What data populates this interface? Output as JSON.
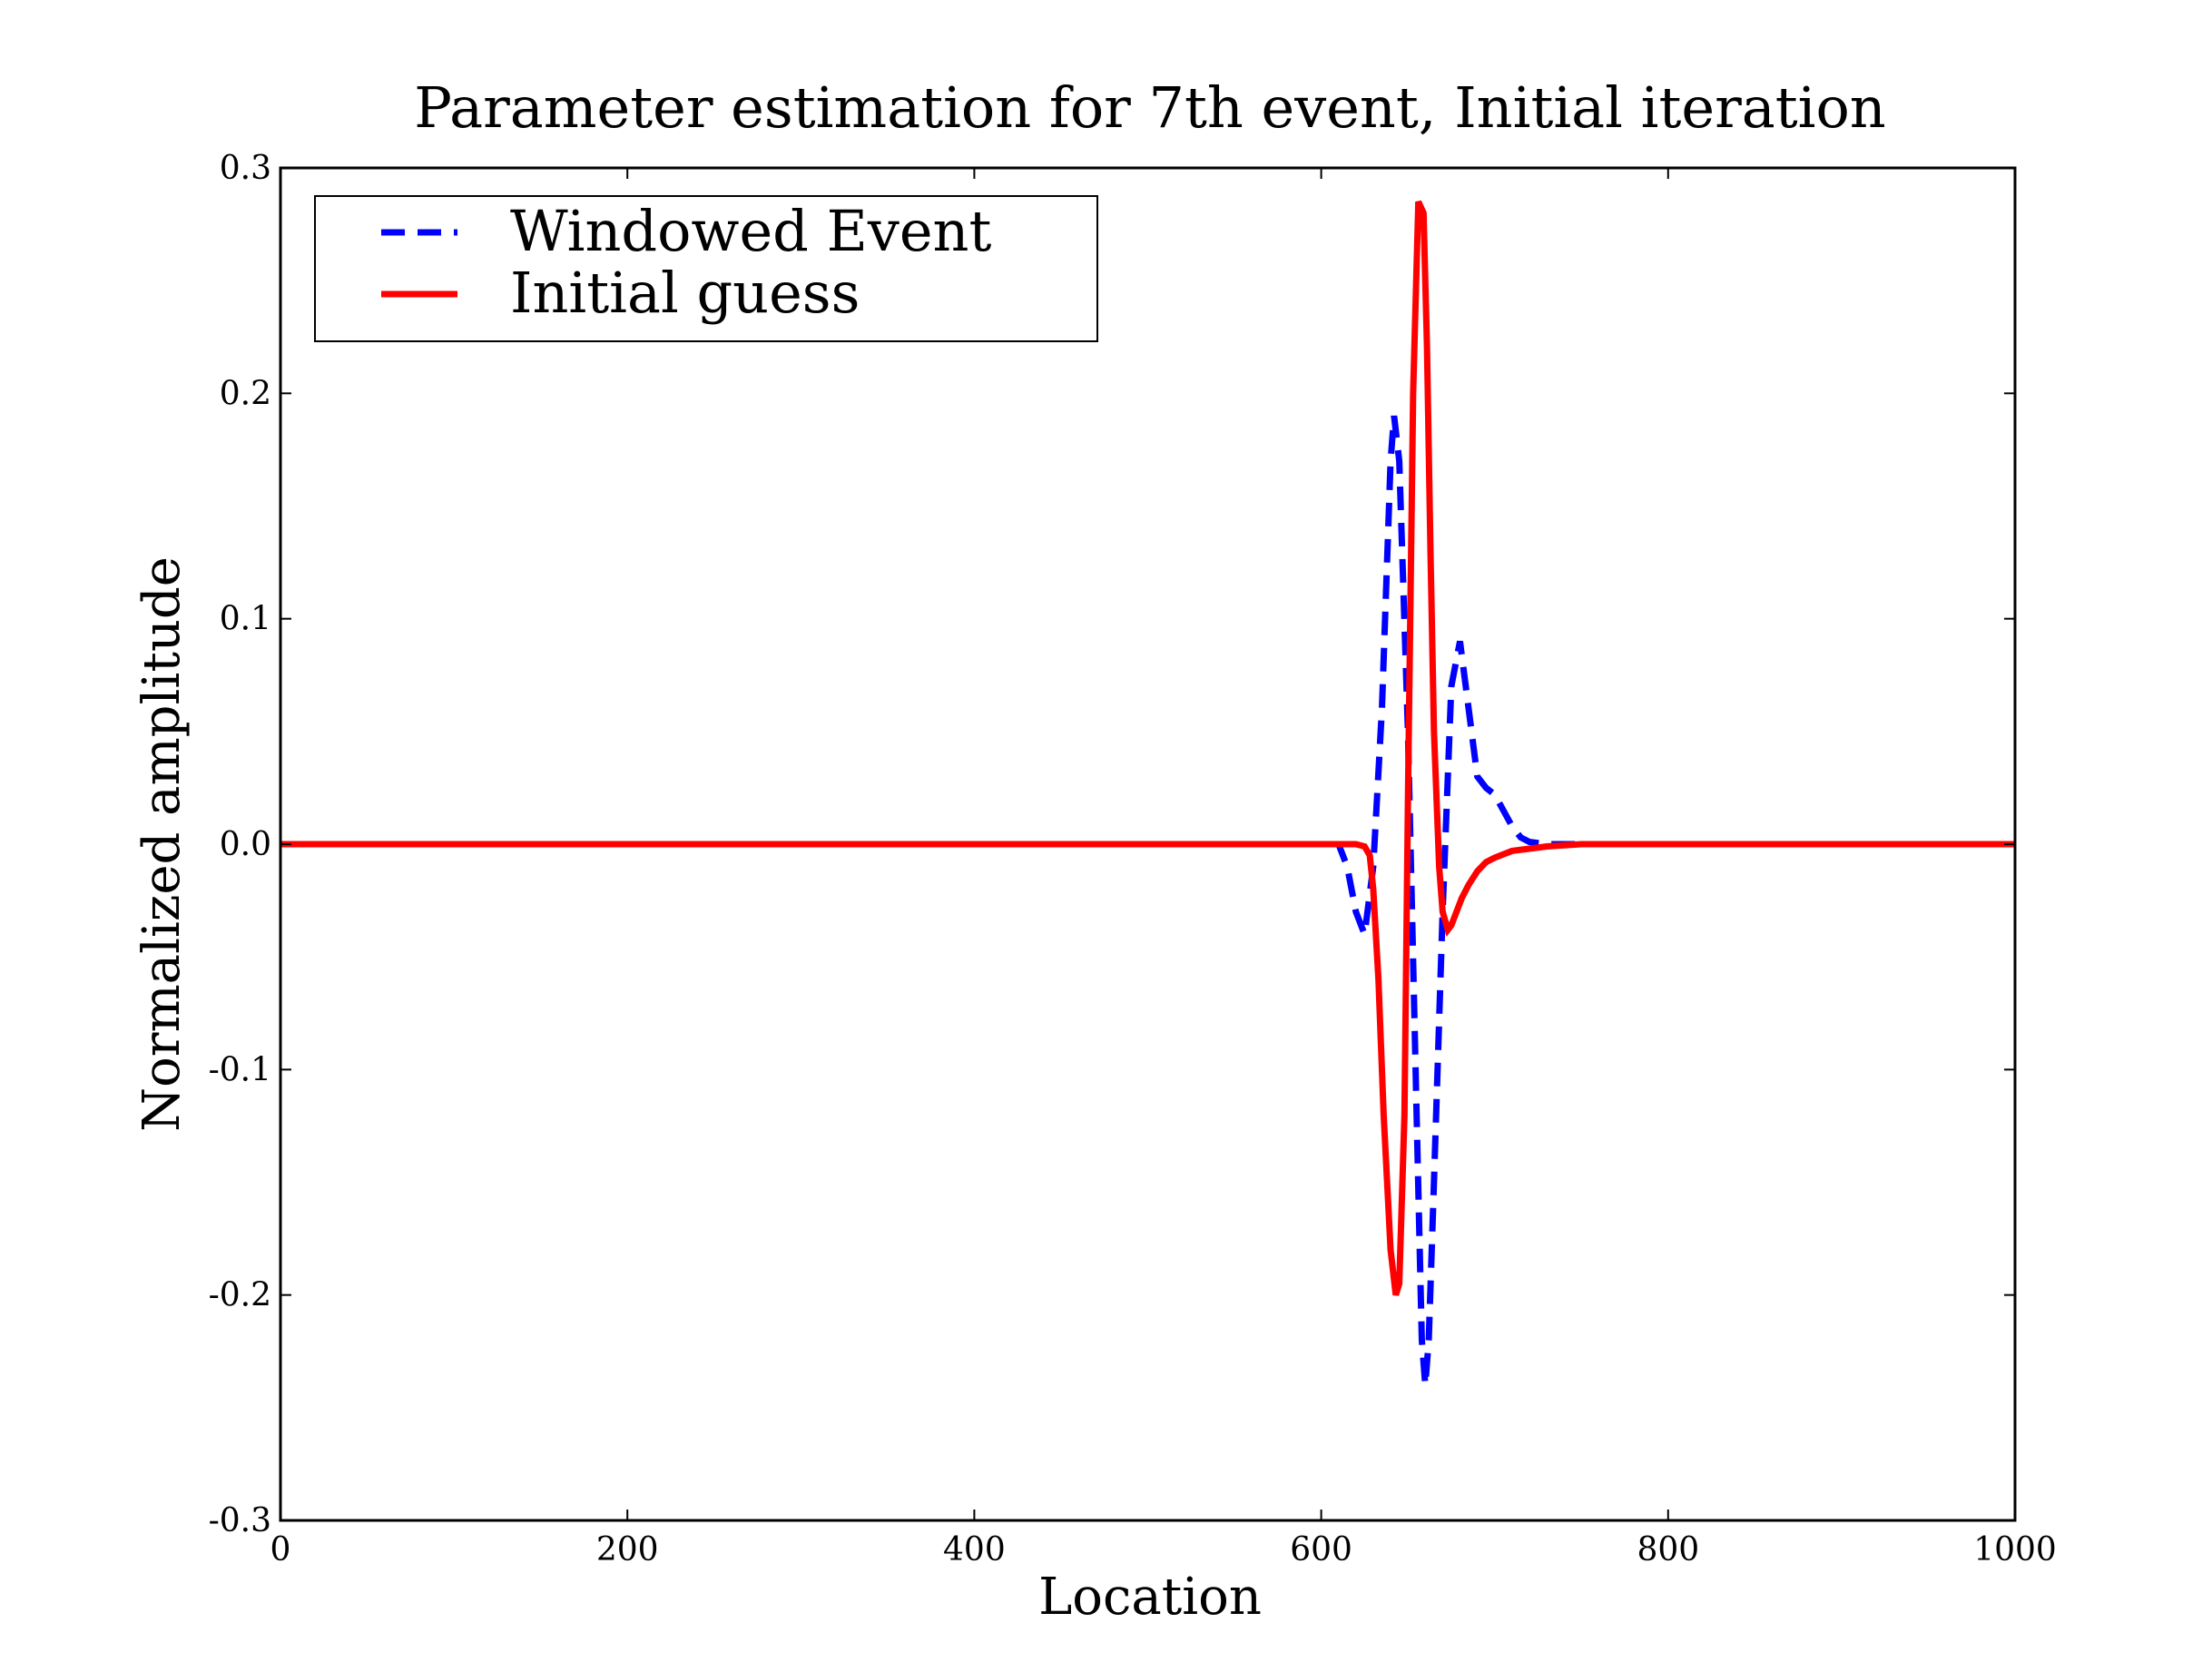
{
  "chart_data": {
    "type": "line",
    "title": "Parameter estimation for 7th event, Initial iteration",
    "xlabel": "Location",
    "ylabel": "Normalized amplitude",
    "xlim": [
      0,
      1000
    ],
    "ylim": [
      -0.3,
      0.3
    ],
    "x_ticks": [
      0,
      200,
      400,
      600,
      800,
      1000
    ],
    "x_tick_labels": [
      "0",
      "200",
      "400",
      "600",
      "800",
      "1000"
    ],
    "y_ticks": [
      0.3,
      0.2,
      0.1,
      0.0,
      -0.1,
      -0.2,
      -0.3
    ],
    "y_tick_labels": [
      "0.3",
      "0.2",
      "0.1",
      "0.0",
      "-0.1",
      "-0.2",
      "-0.3"
    ],
    "grid": false,
    "legend_position": "upper-left",
    "series": [
      {
        "name": "Windowed Event",
        "color": "#0000ff",
        "style": "dashed",
        "x": [
          0,
          600,
          610,
          615,
          620,
          625,
          630,
          635,
          640,
          642,
          645,
          650,
          655,
          658,
          660,
          662,
          665,
          670,
          675,
          680,
          685,
          690,
          695,
          700,
          705,
          710,
          715,
          720,
          730,
          740,
          800,
          1000
        ],
        "y": [
          0,
          0,
          0.0,
          -0.01,
          -0.03,
          -0.04,
          -0.01,
          0.06,
          0.17,
          0.19,
          0.17,
          0.05,
          -0.12,
          -0.22,
          -0.24,
          -0.22,
          -0.15,
          -0.03,
          0.07,
          0.09,
          0.06,
          0.03,
          0.025,
          0.022,
          0.015,
          0.008,
          0.003,
          0.001,
          0.0,
          0.0,
          0.0,
          0.0
        ]
      },
      {
        "name": "Initial guess",
        "color": "#ff0000",
        "style": "solid",
        "x": [
          0,
          600,
          620,
          625,
          628,
          630,
          633,
          636,
          640,
          643,
          645,
          648,
          650,
          653,
          656,
          659,
          661,
          663,
          665,
          668,
          670,
          673,
          675,
          678,
          681,
          685,
          690,
          695,
          700,
          710,
          720,
          730,
          750,
          1000
        ],
        "y": [
          0,
          0,
          0.0,
          -0.001,
          -0.005,
          -0.02,
          -0.06,
          -0.12,
          -0.18,
          -0.2,
          -0.195,
          -0.12,
          0.02,
          0.2,
          0.285,
          0.28,
          0.22,
          0.13,
          0.05,
          -0.01,
          -0.03,
          -0.038,
          -0.036,
          -0.03,
          -0.024,
          -0.018,
          -0.012,
          -0.008,
          -0.006,
          -0.003,
          -0.002,
          -0.001,
          0.0,
          0.0
        ]
      }
    ]
  }
}
